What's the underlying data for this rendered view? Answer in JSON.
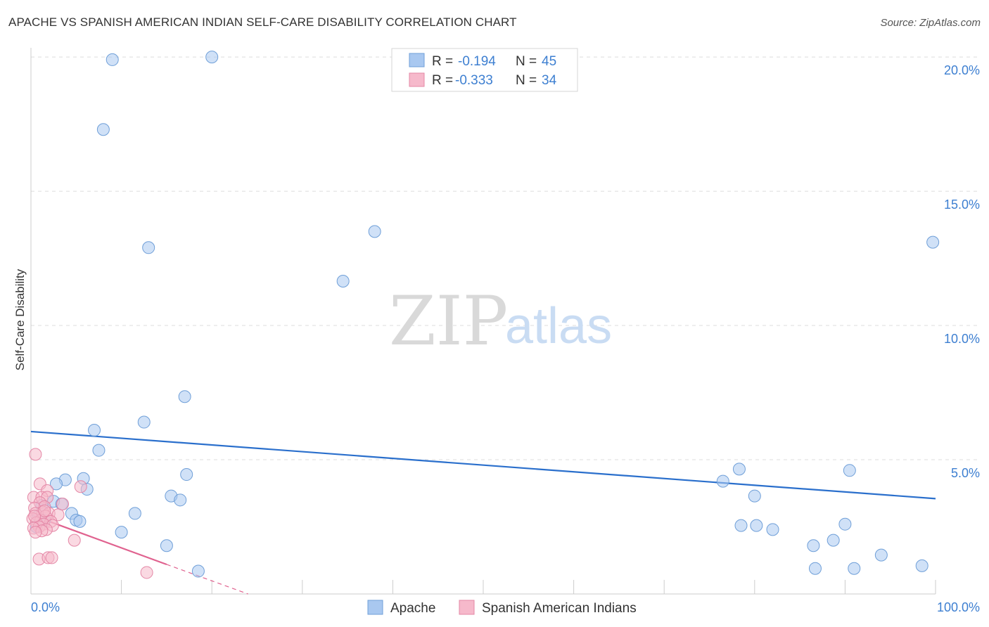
{
  "header": {
    "title": "APACHE VS SPANISH AMERICAN INDIAN SELF-CARE DISABILITY CORRELATION CHART",
    "source": "Source: ZipAtlas.com"
  },
  "watermark": {
    "zip": "ZIP",
    "atlas": "atlas"
  },
  "legend": {
    "rows": [
      {
        "r_label": "R =",
        "r_value": "-0.194",
        "n_label": "N =",
        "n_value": "45"
      },
      {
        "r_label": "R =",
        "r_value": "-0.333",
        "n_label": "N =",
        "n_value": "34"
      }
    ]
  },
  "chart_data": {
    "type": "scatter",
    "title": "APACHE VS SPANISH AMERICAN INDIAN SELF-CARE DISABILITY CORRELATION CHART",
    "xlabel": "",
    "ylabel": "Self-Care Disability",
    "xlim": [
      0,
      100
    ],
    "ylim": [
      0,
      20.5
    ],
    "x_tick_labels": [
      "0.0%",
      "100.0%"
    ],
    "y_ticks": [
      5,
      10,
      15,
      20
    ],
    "y_tick_labels": [
      "5.0%",
      "10.0%",
      "15.0%",
      "20.0%"
    ],
    "series": [
      {
        "name": "Apache",
        "color": "#a9c8f0",
        "stroke": "#6f9fd8",
        "trend_color": "#2a6fcc",
        "trend": {
          "x0": 0,
          "y0": 6.05,
          "x1": 100,
          "y1": 3.55
        },
        "points": [
          [
            9,
            19.9
          ],
          [
            20,
            20.0
          ],
          [
            8,
            17.3
          ],
          [
            13,
            12.9
          ],
          [
            38,
            13.5
          ],
          [
            34.5,
            11.65
          ],
          [
            99.7,
            13.1
          ],
          [
            17,
            7.35
          ],
          [
            12.5,
            6.4
          ],
          [
            7,
            6.1
          ],
          [
            7.5,
            5.35
          ],
          [
            17.2,
            4.45
          ],
          [
            3.8,
            4.25
          ],
          [
            5.8,
            4.3
          ],
          [
            2.8,
            4.1
          ],
          [
            6.2,
            3.9
          ],
          [
            15.5,
            3.65
          ],
          [
            16.5,
            3.5
          ],
          [
            2.5,
            3.45
          ],
          [
            3.4,
            3.35
          ],
          [
            1.2,
            3.3
          ],
          [
            11.5,
            3.0
          ],
          [
            4.5,
            3.0
          ],
          [
            0.8,
            2.9
          ],
          [
            5.0,
            2.75
          ],
          [
            5.4,
            2.7
          ],
          [
            10,
            2.3
          ],
          [
            15,
            1.8
          ],
          [
            18.5,
            0.85
          ],
          [
            78.3,
            4.65
          ],
          [
            90.5,
            4.6
          ],
          [
            76.5,
            4.2
          ],
          [
            80,
            3.65
          ],
          [
            78.5,
            2.55
          ],
          [
            80.2,
            2.55
          ],
          [
            82,
            2.4
          ],
          [
            90,
            2.6
          ],
          [
            86.5,
            1.8
          ],
          [
            88.7,
            2.0
          ],
          [
            86.7,
            0.95
          ],
          [
            91,
            0.95
          ],
          [
            94,
            1.45
          ],
          [
            98.5,
            1.05
          ],
          [
            1.5,
            2.75
          ],
          [
            0.6,
            2.5
          ]
        ]
      },
      {
        "name": "Spanish American Indians",
        "color": "#f6b9cb",
        "stroke": "#e487a6",
        "trend_color": "#e0628f",
        "trend": {
          "x0": 0,
          "y0": 2.95,
          "x1": 15,
          "y1": 1.1
        },
        "trend_dashed": {
          "x0": 15,
          "y0": 1.1,
          "x1": 24,
          "y1": 0.0
        },
        "points": [
          [
            0.5,
            5.2
          ],
          [
            1.0,
            4.1
          ],
          [
            1.8,
            3.85
          ],
          [
            5.5,
            4.0
          ],
          [
            0.3,
            3.6
          ],
          [
            1.2,
            3.6
          ],
          [
            1.8,
            3.6
          ],
          [
            1.0,
            3.4
          ],
          [
            3.5,
            3.35
          ],
          [
            1.5,
            3.25
          ],
          [
            0.4,
            3.2
          ],
          [
            1.3,
            3.05
          ],
          [
            0.5,
            3.0
          ],
          [
            2.0,
            3.0
          ],
          [
            3.0,
            2.95
          ],
          [
            1.6,
            2.9
          ],
          [
            0.2,
            2.8
          ],
          [
            1.1,
            2.75
          ],
          [
            2.2,
            2.7
          ],
          [
            0.6,
            2.65
          ],
          [
            1.4,
            2.6
          ],
          [
            2.4,
            2.55
          ],
          [
            0.9,
            2.5
          ],
          [
            0.3,
            2.45
          ],
          [
            1.7,
            2.4
          ],
          [
            1.2,
            2.35
          ],
          [
            0.5,
            2.3
          ],
          [
            4.8,
            2.0
          ],
          [
            0.9,
            1.3
          ],
          [
            1.9,
            1.35
          ],
          [
            2.3,
            1.35
          ],
          [
            12.8,
            0.8
          ],
          [
            0.4,
            2.9
          ],
          [
            1.5,
            3.1
          ]
        ]
      }
    ]
  },
  "bottom_legend": [
    {
      "label": "Apache",
      "color": "#a9c8f0"
    },
    {
      "label": "Spanish American Indians",
      "color": "#f6b9cb"
    }
  ]
}
